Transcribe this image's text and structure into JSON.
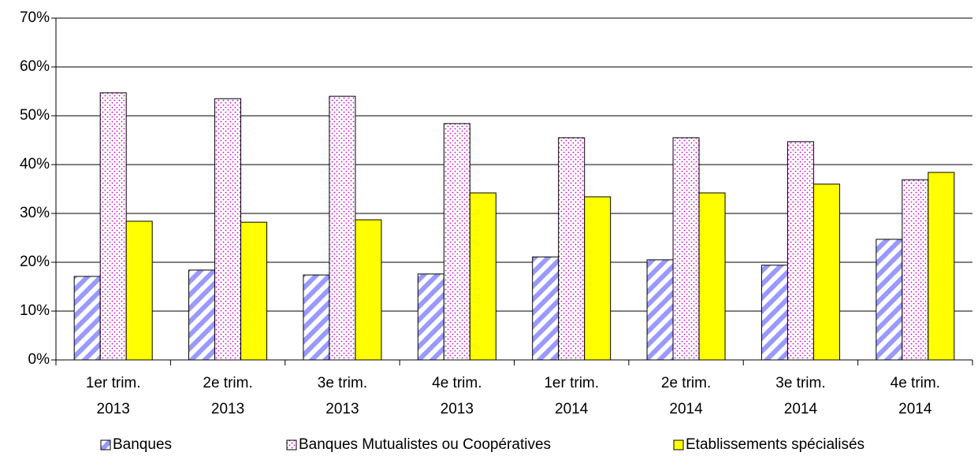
{
  "chart_data": {
    "type": "bar",
    "categories": [
      [
        "1er trim.",
        "2013"
      ],
      [
        "2e trim.",
        "2013"
      ],
      [
        "3e trim.",
        "2013"
      ],
      [
        "4e trim.",
        "2013"
      ],
      [
        "1er trim.",
        "2014"
      ],
      [
        "2e trim.",
        "2014"
      ],
      [
        "3e trim.",
        "2014"
      ],
      [
        "4e trim.",
        "2014"
      ]
    ],
    "series": [
      {
        "name": "Banques",
        "color": "#9999ff",
        "pattern": "diagonal",
        "values": [
          17.1,
          18.4,
          17.4,
          17.6,
          21.1,
          20.5,
          19.4,
          24.7
        ]
      },
      {
        "name": "Banques Mutualistes ou Coopératives",
        "color": "#cc00cc",
        "pattern": "dots",
        "values": [
          54.7,
          53.5,
          54.0,
          48.4,
          45.5,
          45.5,
          44.7,
          36.9
        ]
      },
      {
        "name": "Etablissements spécialisés",
        "color": "#ffff00",
        "pattern": "solid",
        "values": [
          28.4,
          28.2,
          28.7,
          34.2,
          33.4,
          34.2,
          36.0,
          38.4
        ]
      }
    ],
    "ylim": [
      0,
      70
    ],
    "yticks": [
      {
        "value": 0,
        "label": "0%"
      },
      {
        "value": 10,
        "label": "10%"
      },
      {
        "value": 20,
        "label": "20%"
      },
      {
        "value": 30,
        "label": "30%"
      },
      {
        "value": 40,
        "label": "40%"
      },
      {
        "value": 50,
        "label": "50%"
      },
      {
        "value": 60,
        "label": "60%"
      },
      {
        "value": 70,
        "label": "70%"
      }
    ],
    "grid": true,
    "legend": "bottom"
  }
}
